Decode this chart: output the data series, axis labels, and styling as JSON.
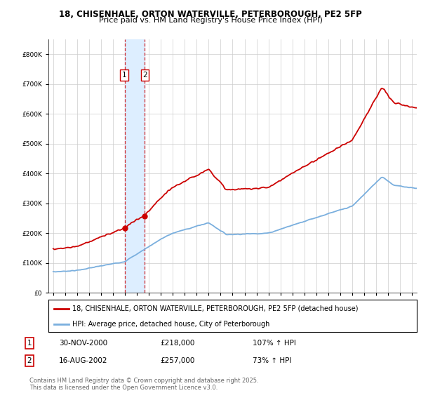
{
  "title": "18, CHISENHALE, ORTON WATERVILLE, PETERBOROUGH, PE2 5FP",
  "subtitle": "Price paid vs. HM Land Registry's House Price Index (HPI)",
  "legend_line1": "18, CHISENHALE, ORTON WATERVILLE, PETERBOROUGH, PE2 5FP (detached house)",
  "legend_line2": "HPI: Average price, detached house, City of Peterborough",
  "footer": "Contains HM Land Registry data © Crown copyright and database right 2025.\nThis data is licensed under the Open Government Licence v3.0.",
  "transaction1_date": "30-NOV-2000",
  "transaction1_price": "£218,000",
  "transaction1_hpi": "107% ↑ HPI",
  "transaction2_date": "16-AUG-2002",
  "transaction2_price": "£257,000",
  "transaction2_hpi": "73% ↑ HPI",
  "property_color": "#cc0000",
  "hpi_color": "#7aafde",
  "vline_color": "#cc0000",
  "vspan_color": "#ddeeff",
  "vline1_x": 2001.0,
  "vline2_x": 2002.62,
  "marker1_x": 2001.0,
  "marker1_y": 218000,
  "marker2_x": 2002.62,
  "marker2_y": 257000,
  "ylim": [
    0,
    850000
  ],
  "xlim": [
    1994.6,
    2025.4
  ],
  "yticks": [
    0,
    100000,
    200000,
    300000,
    400000,
    500000,
    600000,
    700000,
    800000
  ],
  "background_color": "#ffffff",
  "grid_color": "#cccccc"
}
